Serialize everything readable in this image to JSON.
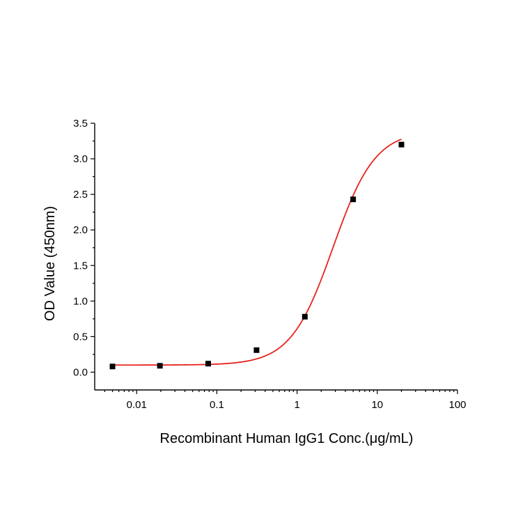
{
  "chart_data": {
    "type": "scatter",
    "title": "",
    "xlabel": "Recombinant Human IgG1 Conc.(μg/mL)",
    "ylabel": "OD Value (450nm)",
    "x_scale": "log",
    "xlim": [
      0.003,
      100
    ],
    "ylim": [
      -0.25,
      3.5
    ],
    "x_ticks": [
      0.01,
      0.1,
      1,
      10,
      100
    ],
    "x_tick_labels": [
      "0.01",
      "0.1",
      "1",
      "10",
      "100"
    ],
    "y_ticks": [
      0.0,
      0.5,
      1.0,
      1.5,
      2.0,
      2.5,
      3.0,
      3.5
    ],
    "y_tick_labels": [
      "0.0",
      "0.5",
      "1.0",
      "1.5",
      "2.0",
      "2.5",
      "3.0",
      "3.5"
    ],
    "grid": false,
    "legend": "none",
    "series": [
      {
        "type": "scatter",
        "color": "#000000",
        "x": [
          0.005,
          0.0195,
          0.078,
          0.3125,
          1.25,
          5,
          20
        ],
        "y": [
          0.08,
          0.09,
          0.12,
          0.31,
          0.78,
          2.43,
          3.2
        ]
      },
      {
        "type": "line",
        "color": "#e8221b",
        "fit": "4PL",
        "params": {
          "bottom": 0.1,
          "top": 3.4,
          "ec50": 2.8,
          "hill": 1.65
        },
        "x_range": [
          0.005,
          20
        ]
      }
    ]
  }
}
